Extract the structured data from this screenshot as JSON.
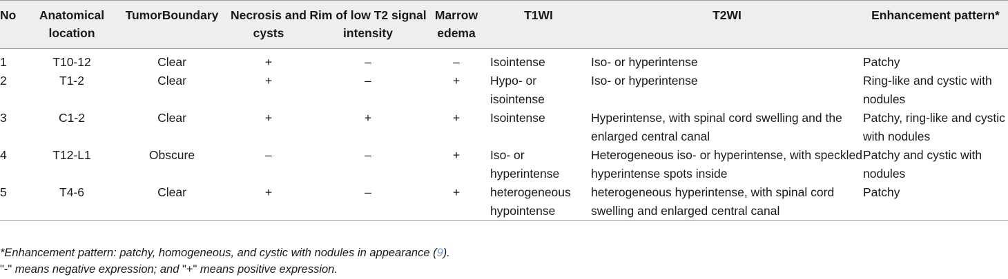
{
  "table": {
    "headers": [
      {
        "key": "no",
        "label": "No"
      },
      {
        "key": "location",
        "label": "Anatomical location"
      },
      {
        "key": "boundary",
        "label": "TumorBoundary"
      },
      {
        "key": "necrosis",
        "label": "Necrosis and cysts"
      },
      {
        "key": "rim",
        "label": "Rim of low T2 signal intensity"
      },
      {
        "key": "marrow",
        "label": "Marrow edema"
      },
      {
        "key": "t1wi",
        "label": "T1WI"
      },
      {
        "key": "t2wi",
        "label": "T2WI"
      },
      {
        "key": "enhancement",
        "label": "Enhancement pattern*"
      }
    ],
    "rows": [
      {
        "no": "1",
        "location": "T10-12",
        "boundary": "Clear",
        "necrosis": "+",
        "rim": "–",
        "marrow": "–",
        "t1wi": "Isointense",
        "t2wi": "Iso- or hyperintense",
        "enhancement": "Patchy"
      },
      {
        "no": "2",
        "location": "T1-2",
        "boundary": "Clear",
        "necrosis": "+",
        "rim": "–",
        "marrow": "+",
        "t1wi": "Hypo- or isointense",
        "t2wi": "Iso- or hyperintense",
        "enhancement": "Ring-like and cystic with nodules"
      },
      {
        "no": "3",
        "location": "C1-2",
        "boundary": "Clear",
        "necrosis": "+",
        "rim": "+",
        "marrow": "+",
        "t1wi": "Isointense",
        "t2wi": "Hyperintense, with spinal cord swelling and the enlarged central canal",
        "enhancement": "Patchy, ring-like and cystic with nodules"
      },
      {
        "no": "4",
        "location": "T12-L1",
        "boundary": "Obscure",
        "necrosis": "–",
        "rim": "–",
        "marrow": "+",
        "t1wi": "Iso- or hyperintense",
        "t2wi": "Heterogeneous iso- or hyperintense, with speckled hyperintense spots inside",
        "enhancement": "Patchy and cystic with nodules"
      },
      {
        "no": "5",
        "location": "T4-6",
        "boundary": "Clear",
        "necrosis": "+",
        "rim": "–",
        "marrow": "+",
        "t1wi": "heterogeneous hypointense",
        "t2wi": "heterogeneous hyperintense, with spinal cord swelling and enlarged central canal",
        "enhancement": "Patchy"
      }
    ]
  },
  "footnotes": {
    "note1_text": "*Enhancement pattern: patchy, homogeneous, and cystic with nodules in appearance (",
    "note1_ref": "9",
    "note1_end": ").",
    "note2_q1": "\"-\"",
    "note2_mid": " means negative expression; and ",
    "note2_q2": "\"+\"",
    "note2_end": " means positive expression."
  },
  "colors": {
    "header_bg": "#eeeeee",
    "rule": "#9e9e9e",
    "ref_link": "#7a9cc6"
  }
}
